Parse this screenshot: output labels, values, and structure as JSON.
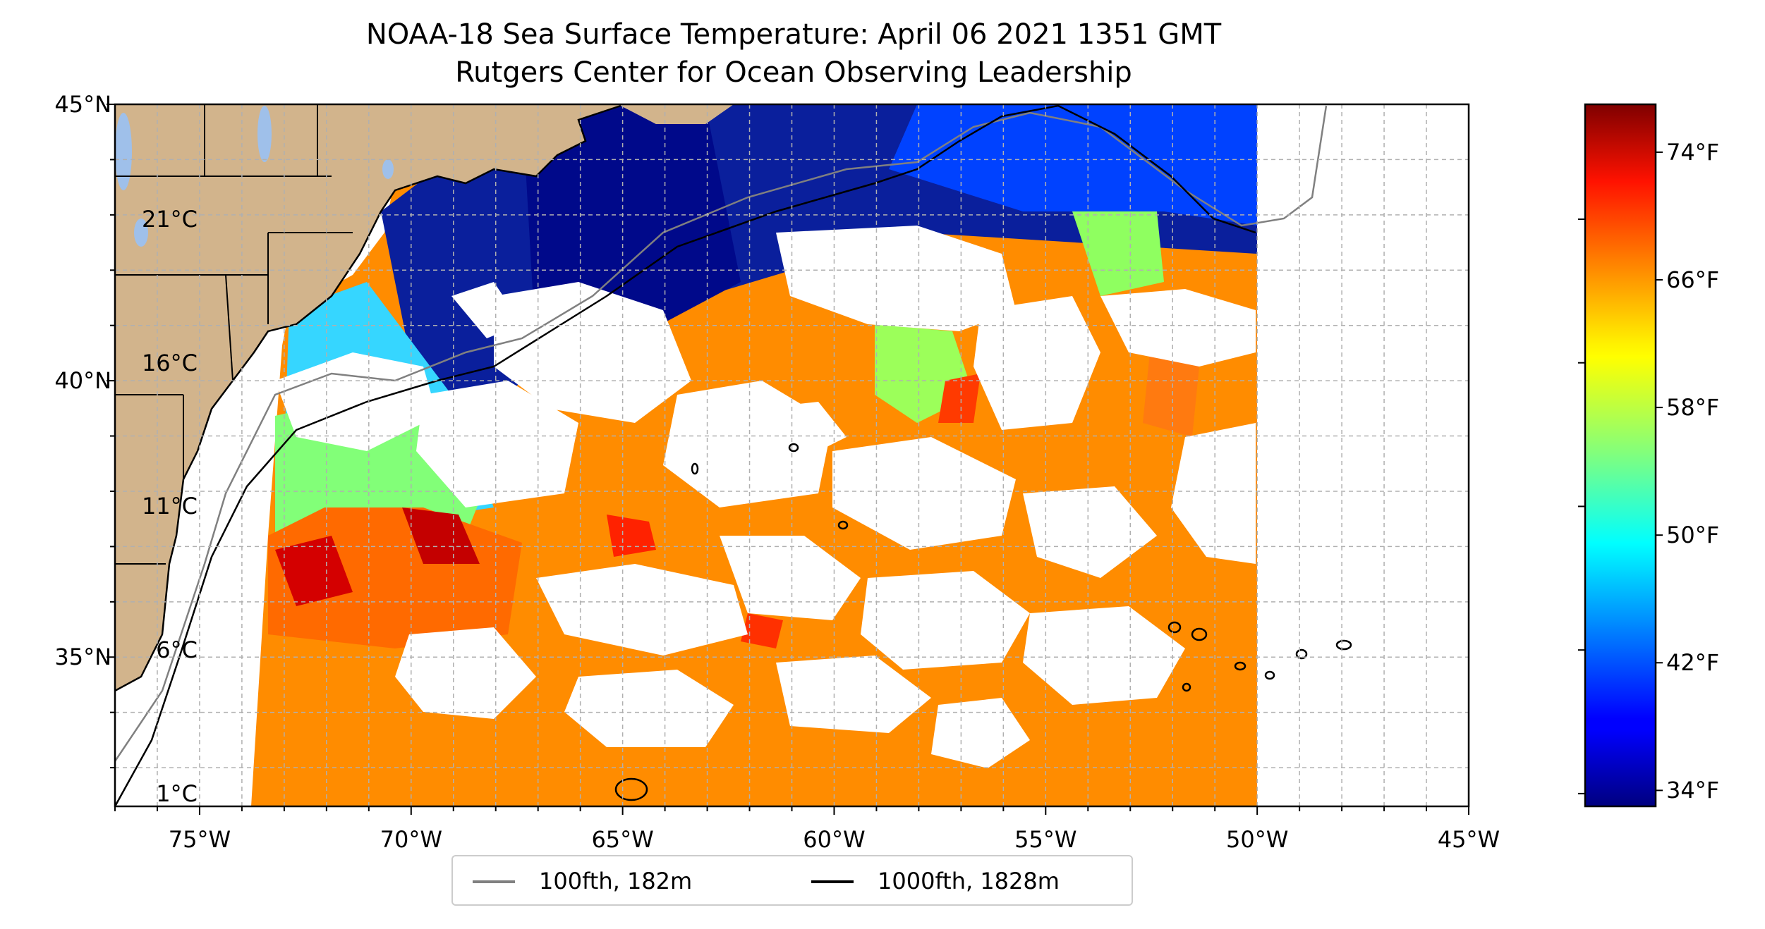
{
  "title": "NOAA-18 Sea Surface Temperature: April 06 2021 1351 GMT",
  "subtitle": "Rutgers Center for Ocean Observing Leadership",
  "map": {
    "lon_range": [
      -77,
      -45
    ],
    "lat_range": [
      32.3,
      45
    ],
    "lon_ticks": [
      {
        "value": -75,
        "label": "75°W"
      },
      {
        "value": -70,
        "label": "70°W"
      },
      {
        "value": -65,
        "label": "65°W"
      },
      {
        "value": -60,
        "label": "60°W"
      },
      {
        "value": -55,
        "label": "55°W"
      },
      {
        "value": -50,
        "label": "50°W"
      },
      {
        "value": -45,
        "label": "45°W"
      }
    ],
    "lat_ticks": [
      {
        "value": 45,
        "label": "45°N"
      },
      {
        "value": 40,
        "label": "40°N"
      },
      {
        "value": 35,
        "label": "35°N"
      }
    ],
    "grid": true,
    "land_color": "#d2b48c",
    "lake_color": "#9fc0ea",
    "no_data_color": "#ffffff"
  },
  "colorbar": {
    "colormap": "jet",
    "range_f": [
      33,
      77
    ],
    "fahrenheit_ticks": [
      {
        "value": 34,
        "label": "34°F"
      },
      {
        "value": 42,
        "label": "42°F"
      },
      {
        "value": 50,
        "label": "50°F"
      },
      {
        "value": 58,
        "label": "58°F"
      },
      {
        "value": 66,
        "label": "66°F"
      },
      {
        "value": 74,
        "label": "74°F"
      }
    ],
    "celsius_ticks": [
      {
        "value": 1,
        "label": "1°C"
      },
      {
        "value": 6,
        "label": "6°C"
      },
      {
        "value": 11,
        "label": "11°C"
      },
      {
        "value": 16,
        "label": "16°C"
      },
      {
        "value": 21,
        "label": "21°C"
      }
    ]
  },
  "legend": {
    "items": [
      {
        "label": "100fth, 182m",
        "color": "#808080"
      },
      {
        "label": "1000fth, 1828m",
        "color": "#000000"
      }
    ]
  }
}
